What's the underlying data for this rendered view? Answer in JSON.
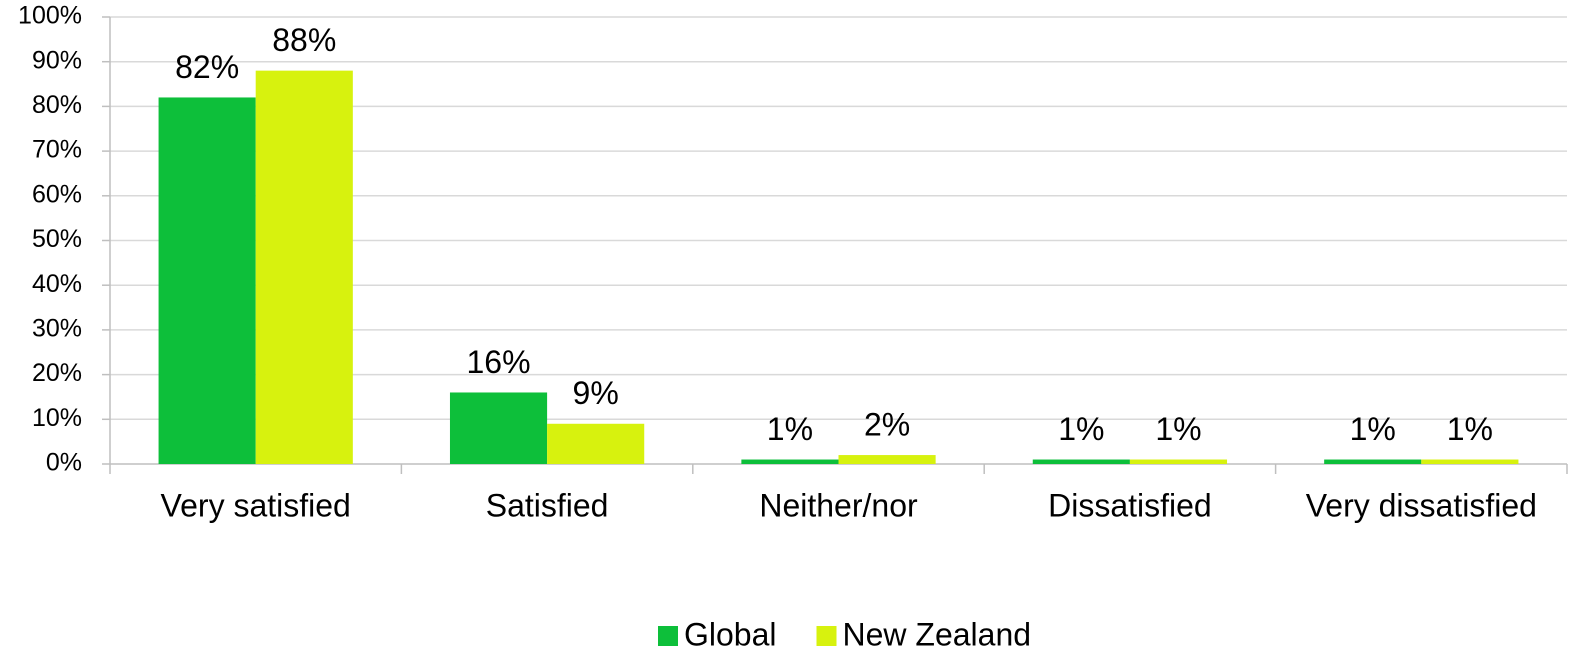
{
  "chart_data": {
    "type": "bar",
    "categories": [
      "Very satisfied",
      "Satisfied",
      "Neither/nor",
      "Dissatisfied",
      "Very dissatisfied"
    ],
    "series": [
      {
        "name": "Global",
        "color": "#0dbf3a",
        "values": [
          82,
          16,
          1,
          1,
          1
        ],
        "value_labels": [
          "82%",
          "16%",
          "1%",
          "1%",
          "1%"
        ]
      },
      {
        "name": "New Zealand",
        "color": "#d7f20e",
        "values": [
          88,
          9,
          2,
          1,
          1
        ],
        "value_labels": [
          "88%",
          "9%",
          "2%",
          "1%",
          "1%"
        ]
      }
    ],
    "ylim": [
      0,
      100
    ],
    "yticks": [
      {
        "value": 0,
        "label": "0%"
      },
      {
        "value": 10,
        "label": "10%"
      },
      {
        "value": 20,
        "label": "20%"
      },
      {
        "value": 30,
        "label": "30%"
      },
      {
        "value": 40,
        "label": "40%"
      },
      {
        "value": 50,
        "label": "50%"
      },
      {
        "value": 60,
        "label": "60%"
      },
      {
        "value": 70,
        "label": "70%"
      },
      {
        "value": 80,
        "label": "80%"
      },
      {
        "value": 90,
        "label": "90%"
      },
      {
        "value": 100,
        "label": "100%"
      }
    ],
    "grid": true,
    "legend": "bottom"
  }
}
